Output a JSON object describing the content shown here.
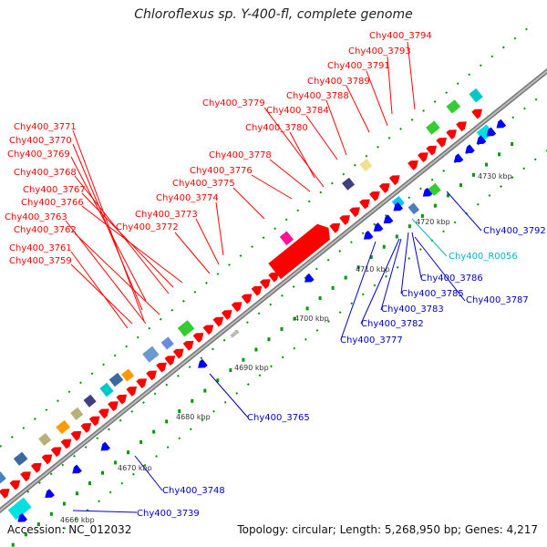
{
  "title": "Chloroflexus sp. Y-400-fl, complete genome",
  "footer": {
    "accession": "Accession: NC_012032",
    "summary": "Topology: circular; Length: 5,268,950 bp; Genes: 4,217"
  },
  "colors": {
    "forward_cds": "#ff0000",
    "reverse_cds": "#0000ff",
    "rna": "#00b4c8",
    "backbone": "#999999",
    "tick": "#009900"
  },
  "scale_ticks": [
    "4660 kbp",
    "4670 kbp",
    "4680 kbp",
    "4690 kbp",
    "4700 kbp",
    "4710 kbp",
    "4720 kbp",
    "4730 kbp"
  ],
  "top_labels": [
    "Chy400_3794",
    "Chy400_3793",
    "Chy400_3791",
    "Chy400_3789",
    "Chy400_3788",
    "Chy400_3779",
    "Chy400_3784",
    "Chy400_3780",
    "Chy400_3778",
    "Chy400_3776",
    "Chy400_3775",
    "Chy400_3774",
    "Chy400_3773",
    "Chy400_3772",
    "Chy400_3771",
    "Chy400_3770",
    "Chy400_3769",
    "Chy400_3768",
    "Chy400_3767",
    "Chy400_3766",
    "Chy400_3763",
    "Chy400_3762",
    "Chy400_3761",
    "Chy400_3759"
  ],
  "bottom_labels": [
    "Chy400_3792",
    "Chy400_R0056",
    "Chy400_3786",
    "Chy400_3787",
    "Chy400_3785",
    "Chy400_3783",
    "Chy400_3782",
    "Chy400_3777",
    "Chy400_3765",
    "Chy400_3748",
    "Chy400_3739"
  ]
}
